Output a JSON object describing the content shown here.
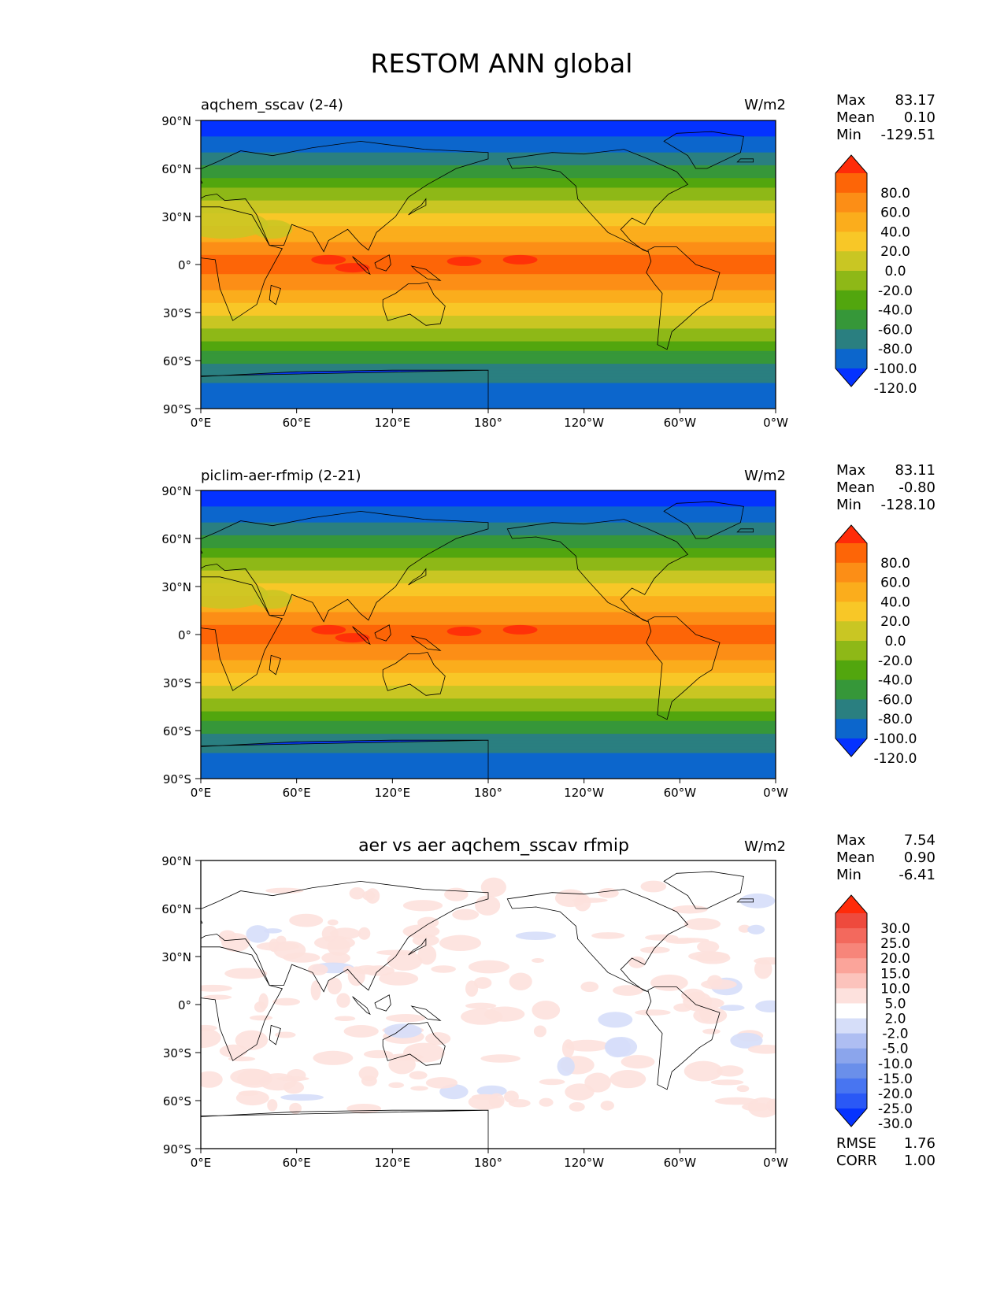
{
  "title": "RESTOM ANN global",
  "lat_ticks": [
    "90°N",
    "60°N",
    "30°N",
    "0°",
    "30°S",
    "60°S",
    "90°S"
  ],
  "lon_ticks": [
    "0°E",
    "60°E",
    "120°E",
    "180°",
    "120°W",
    "60°W",
    "0°W"
  ],
  "colors": {
    "main_levels": [
      "#0432FF",
      "#0C66CC",
      "#2A7F80",
      "#369739",
      "#52A60E",
      "#8EB817",
      "#C9C623",
      "#F8C727",
      "#FBAD1C",
      "#FC8E16",
      "#FD6507",
      "#FF2B09"
    ],
    "diff_levels": [
      "#0533FF",
      "#2A58F6",
      "#4875F1",
      "#6A8FEA",
      "#8BA5EC",
      "#AEBEF2",
      "#D6DEF9",
      "#FFFFFF",
      "#FDE1DD",
      "#FCC3BC",
      "#FBA49A",
      "#F7857A",
      "#F3695D",
      "#EE4A3D",
      "#FF2B09"
    ],
    "coast": "#000000"
  },
  "chart_data": [
    {
      "type": "heatmap",
      "panel": "test",
      "subtitle_left": "aqchem_sscav (2-4)",
      "units": "W/m2",
      "stats": {
        "max_label": "Max",
        "max": "83.17",
        "mean_label": "Mean",
        "mean": "0.10",
        "min_label": "Min",
        "min": "-129.51"
      },
      "colorbar_levels": [
        "80.0",
        "60.0",
        "40.0",
        "20.0",
        "0.0",
        "-20.0",
        "-40.0",
        "-60.0",
        "-80.0",
        "-100.0",
        "-120.0"
      ],
      "xlim": [
        0,
        360
      ],
      "ylim": [
        -90,
        90
      ]
    },
    {
      "type": "heatmap",
      "panel": "reference",
      "subtitle_left": "piclim-aer-rfmip (2-21)",
      "units": "W/m2",
      "stats": {
        "max_label": "Max",
        "max": "83.11",
        "mean_label": "Mean",
        "mean": "-0.80",
        "min_label": "Min",
        "min": "-128.10"
      },
      "colorbar_levels": [
        "80.0",
        "60.0",
        "40.0",
        "20.0",
        "0.0",
        "-20.0",
        "-40.0",
        "-60.0",
        "-80.0",
        "-100.0",
        "-120.0"
      ],
      "xlim": [
        0,
        360
      ],
      "ylim": [
        -90,
        90
      ]
    },
    {
      "type": "heatmap",
      "panel": "difference",
      "subtitle_center": "aer vs aer aqchem_sscav rfmip",
      "units": "W/m2",
      "stats": {
        "max_label": "Max",
        "max": "7.54",
        "mean_label": "Mean",
        "mean": "0.90",
        "min_label": "Min",
        "min": "-6.41"
      },
      "colorbar_levels": [
        "30.0",
        "25.0",
        "20.0",
        "15.0",
        "10.0",
        "5.0",
        "2.0",
        "-2.0",
        "-5.0",
        "-10.0",
        "-15.0",
        "-20.0",
        "-25.0",
        "-30.0"
      ],
      "metrics": {
        "rmse_label": "RMSE",
        "rmse": "1.76",
        "corr_label": "CORR",
        "corr": "1.00"
      },
      "xlim": [
        0,
        360
      ],
      "ylim": [
        -90,
        90
      ]
    }
  ]
}
